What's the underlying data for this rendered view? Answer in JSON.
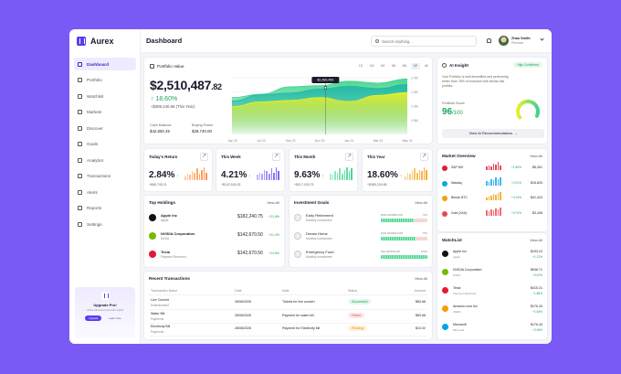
{
  "app": {
    "name": "Aurex"
  },
  "sidebar": {
    "items": [
      {
        "label": "Dashboard",
        "icon": "grid-icon",
        "active": true
      },
      {
        "label": "Portfolio",
        "icon": "briefcase-icon"
      },
      {
        "label": "Watchlist",
        "icon": "eye-icon"
      },
      {
        "label": "Markets",
        "icon": "chart-icon"
      },
      {
        "label": "Discover",
        "icon": "compass-icon"
      },
      {
        "label": "Goals",
        "icon": "target-icon"
      },
      {
        "label": "Analytics",
        "icon": "analytics-icon"
      },
      {
        "label": "Transactions",
        "icon": "swap-icon"
      },
      {
        "label": "Alerts",
        "icon": "bell-icon"
      },
      {
        "label": "Reports",
        "icon": "report-icon"
      },
      {
        "label": "Settings",
        "icon": "gear-icon"
      }
    ],
    "upgrade": {
      "title": "Upgrade Pro!",
      "subtitle": "Unlock advanced tools and insights",
      "primary": "Upgrade",
      "secondary": "Learn more"
    }
  },
  "header": {
    "title": "Dashboard",
    "search_placeholder": "Search anything...",
    "user_name": "Zhao Smith",
    "user_role": "Premium"
  },
  "portfolio": {
    "title": "Portfolio Value",
    "value_main": "$2,510,487",
    "value_cents": ".82",
    "change": "↑ 18.60%",
    "change_sub": "+$389,240.68 (This Year)",
    "cash_label": "Cash Balance",
    "cash_value": "$42,850.45",
    "buying_label": "Buying Power",
    "buying_value": "$28,740.00",
    "ranges": [
      "1D",
      "1W",
      "1M",
      "3M",
      "6M",
      "1Y",
      "All"
    ],
    "active_range": "1Y",
    "tooltip": "$2,480,450"
  },
  "chart_data": {
    "type": "area",
    "x": [
      "May 23",
      "Jul 23",
      "Sep 23",
      "Nov 23",
      "Jan 24",
      "Mar 24",
      "May 24"
    ],
    "ylim": [
      0,
      2000000
    ],
    "ytick_labels": [
      "2.0M",
      "1.5M",
      "1.0M",
      "0.5M"
    ],
    "series": [
      {
        "color": "#3fd48a",
        "values": [
          1300000,
          1420000,
          1680000,
          1720000,
          1880000,
          1810000,
          1960000
        ]
      },
      {
        "color": "#22b8a8",
        "values": [
          1180000,
          1400000,
          1460000,
          1600000,
          1700000,
          1620000,
          1760000
        ]
      },
      {
        "color": "#e8ef2a",
        "values": [
          980000,
          1150000,
          1200000,
          1300000,
          1160000,
          1380000,
          1480000
        ]
      }
    ]
  },
  "stats": [
    {
      "title": "Today's Return",
      "value": "2.84%",
      "sub": "+$68,745.21",
      "color": "#ff8a3d",
      "bars": [
        0.3,
        0.5,
        0.4,
        0.7,
        0.6,
        0.9,
        0.5,
        0.8,
        1.0,
        0.6
      ]
    },
    {
      "title": "This Week",
      "value": "4.21%",
      "sub": "+$102,540.32",
      "color": "#7a5af5",
      "bars": [
        0.4,
        0.6,
        0.5,
        0.8,
        0.7,
        0.5,
        0.9,
        0.6,
        1.0,
        0.7
      ]
    },
    {
      "title": "This Month",
      "value": "9.63%",
      "sub": "+$217,430.75",
      "color": "#3fd48a",
      "bars": [
        0.5,
        0.4,
        0.7,
        0.6,
        0.9,
        0.5,
        0.8,
        1.0,
        0.7,
        0.9
      ]
    },
    {
      "title": "This Year",
      "value": "18.60%",
      "sub": "+$389,240.68",
      "color": "#f5a623",
      "bars": [
        0.3,
        0.6,
        0.5,
        0.7,
        0.9,
        0.6,
        0.8,
        0.7,
        1.0,
        0.8
      ]
    }
  ],
  "holdings": {
    "title": "Top Holdings",
    "view_all": "View All",
    "items": [
      {
        "name": "Apple Inc",
        "ticker": "Apple",
        "value": "$182,240.75",
        "change": "+21.8%",
        "color": "#111"
      },
      {
        "name": "NVIDIA Corporation",
        "ticker": "NVDA",
        "value": "$142,670.50",
        "change": "+21.4%",
        "color": "#76b900"
      },
      {
        "name": "Tesla",
        "ticker": "Payment Received",
        "value": "$142,670.50",
        "change": "+14.8%",
        "color": "#e31937"
      }
    ]
  },
  "goals": {
    "title": "Investment Goals",
    "view_all": "View All",
    "items": [
      {
        "name": "Early Retirement",
        "sub": "Monthly investment",
        "amount": "$350,000/$500,000",
        "pct_label": "70%",
        "progress": 0.7
      },
      {
        "name": "Dream Home",
        "sub": "Monthly investment",
        "amount": "$150,000/$200,000",
        "pct_label": "75%",
        "progress": 0.75
      },
      {
        "name": "Emergency Fund",
        "sub": "Monthly investment",
        "amount": "$30,000/$30,000",
        "pct_label": "100%",
        "progress": 1.0
      }
    ]
  },
  "transactions": {
    "title": "Recent Transactions",
    "view_all": "View All",
    "headers": [
      "Transaction Name",
      "Date",
      "Note",
      "Status",
      "Amount"
    ],
    "rows": [
      {
        "name": "Live Concert",
        "sub": "Entertainment",
        "date": "28/06/2026",
        "note": "Tickets for live concert",
        "status": "Successful",
        "status_color": "#1ba65a",
        "status_bg": "#e4f7ec",
        "amount": "$60.68"
      },
      {
        "name": "Water Bill",
        "sub": "Payments",
        "date": "28/06/2026",
        "note": "Payment for water bill",
        "status": "Failed",
        "status_color": "#e5484d",
        "status_bg": "#fde7e7",
        "amount": "$60.68"
      },
      {
        "name": "Electricity Bill",
        "sub": "Payments",
        "date": "28/06/2026",
        "note": "Payment for Electricity bill",
        "status": "Pending",
        "status_color": "#e08a14",
        "status_bg": "#fff1dc",
        "amount": "$10.02"
      }
    ]
  },
  "ai": {
    "title": "AI Insight",
    "badge": "High Confidence",
    "text": "Your Portfolio is well diversified and performing better than 78% of investors with similar risk profiles.",
    "score_label": "Portfolio Score",
    "score": "96",
    "score_max": "/100",
    "score_value": 0.96,
    "button": "View AI Recommendations →"
  },
  "market": {
    "title": "Market Overview",
    "view_all": "View All",
    "items": [
      {
        "name": "S&P 500",
        "change": "+1.85%",
        "value": "$5,261",
        "color": "#e31937",
        "bars": [
          0.4,
          0.6,
          0.5,
          0.8,
          0.7,
          1.0,
          0.6
        ]
      },
      {
        "name": "Nasdaq",
        "change": "+2.21%",
        "value": "$16,833",
        "color": "#0ea5e9",
        "bars": [
          0.5,
          0.4,
          0.7,
          0.6,
          0.9,
          0.7,
          1.0
        ]
      },
      {
        "name": "Bitcoin BTC",
        "change": "+4.14%",
        "value": "$41,424",
        "color": "#f59e0b",
        "bars": [
          0.3,
          0.5,
          0.6,
          0.8,
          0.7,
          0.9,
          1.0
        ]
      },
      {
        "name": "Gold (XAU)",
        "change": "+0.74%",
        "value": "$3,436",
        "color": "#e5484d",
        "bars": [
          0.6,
          0.5,
          0.7,
          0.6,
          0.8,
          0.7,
          0.9
        ]
      }
    ]
  },
  "watchlist": {
    "title": "WatchList",
    "view_all": "View All",
    "items": [
      {
        "name": "Apple Inc",
        "ticker": "Apple",
        "price": "$193.24",
        "change": "+1.12%",
        "color": "#111"
      },
      {
        "name": "NVIDIA Corporation",
        "ticker": "NVDA",
        "price": "$948.71",
        "change": "+3.42%",
        "color": "#76b900"
      },
      {
        "name": "Tesla",
        "ticker": "Payment Received",
        "price": "$415.31",
        "change": "+1.85%",
        "color": "#e31937"
      },
      {
        "name": "Amazon.com Inc",
        "ticker": "AMZN",
        "price": "$176.43",
        "change": "+1.64%",
        "color": "#ff9900"
      },
      {
        "name": "Microsoft",
        "ticker": "Microsoft",
        "price": "$176.43",
        "change": "+2.05%",
        "color": "#00a4ef"
      }
    ]
  }
}
